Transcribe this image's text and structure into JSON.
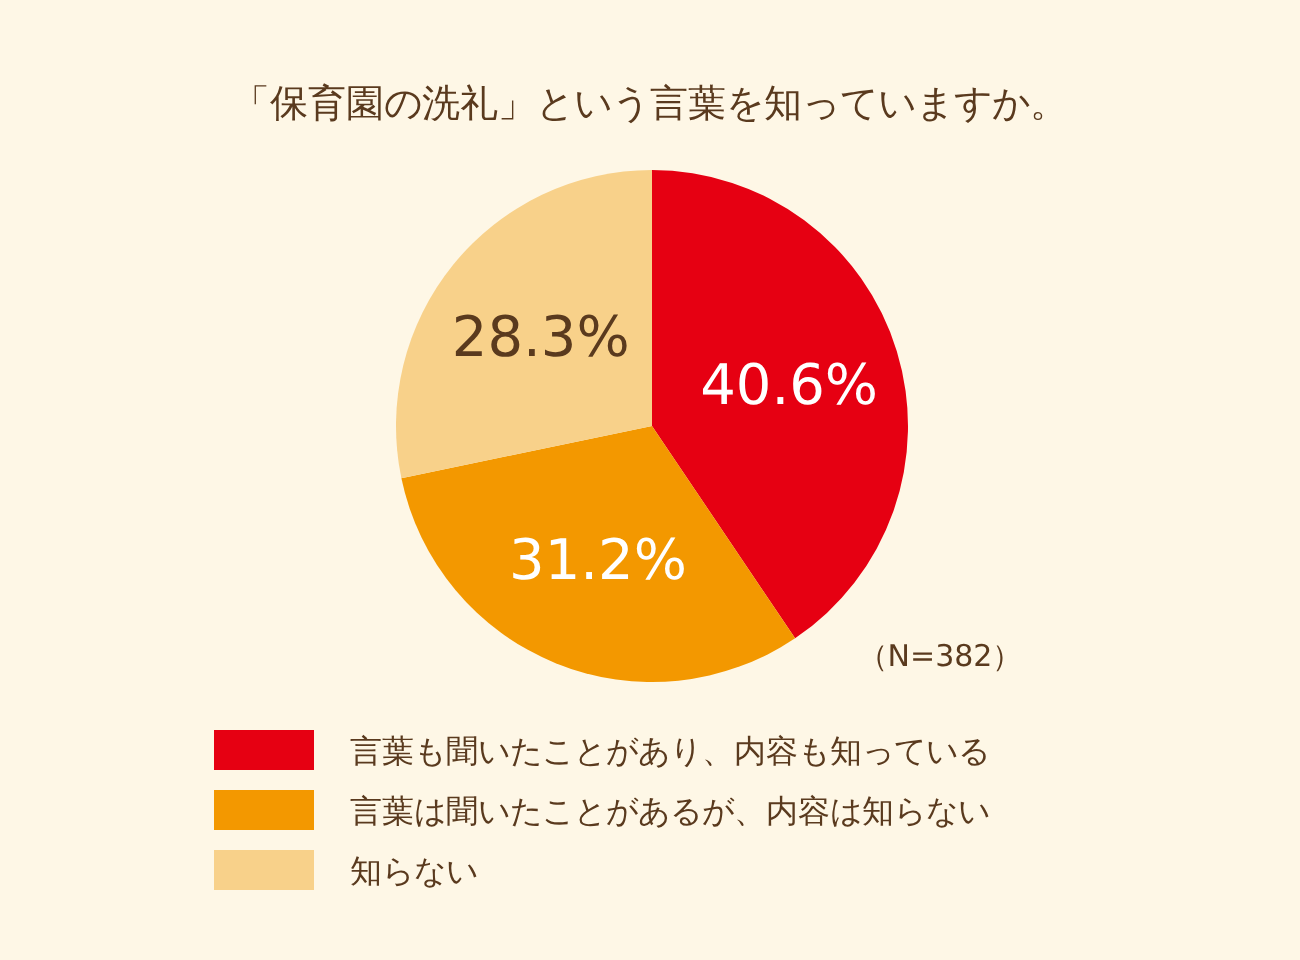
{
  "chart_data": {
    "type": "pie",
    "title": "「保育園の洗礼」という言葉を知っていますか。",
    "categories": [
      "言葉も聞いたことがあり、内容も知っている",
      "言葉は聞いたことがあるが、内容は知らない",
      "知らない"
    ],
    "values": [
      40.6,
      31.2,
      28.3
    ],
    "colors": [
      "#e60012",
      "#f39800",
      "#f8d18a"
    ],
    "value_labels": [
      "40.6%",
      "31.2%",
      "28.3%"
    ],
    "legend": "bottom",
    "annotations": [
      "（N=382）"
    ]
  }
}
